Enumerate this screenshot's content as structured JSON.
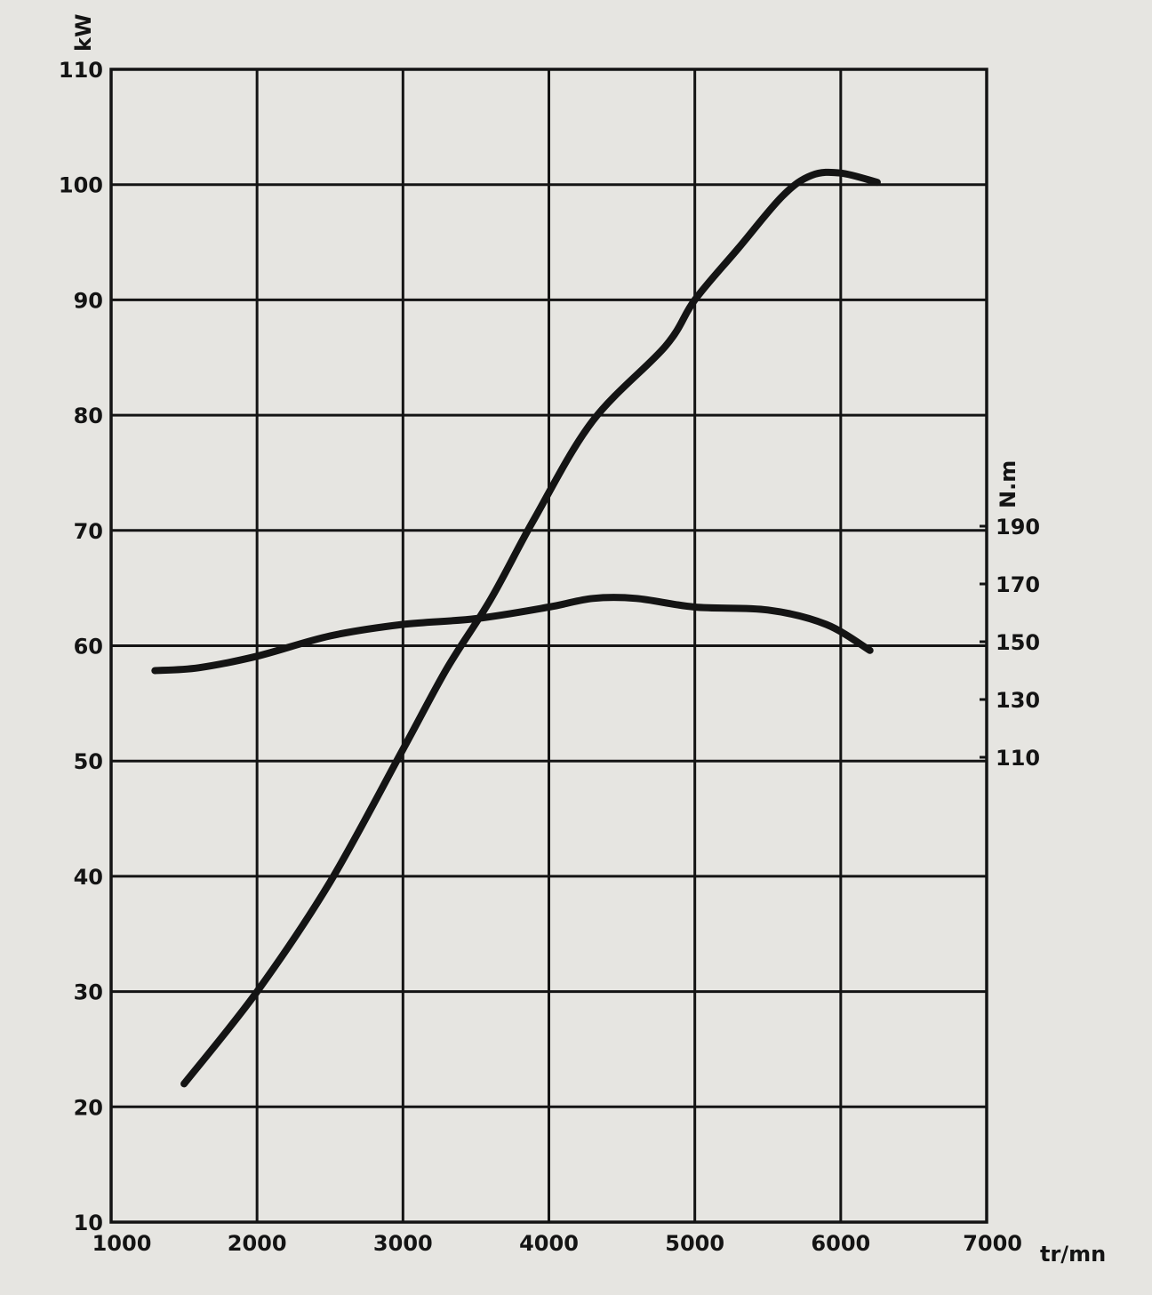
{
  "chart_data": {
    "type": "line",
    "title": "",
    "xlabel": "tr/mn",
    "ylabel": "kW",
    "y2label": "N.m",
    "xlim": [
      1000,
      7000
    ],
    "ylim": [
      10,
      110
    ],
    "y2lim": [
      110,
      190
    ],
    "grid": true,
    "x_ticks": [
      "1000",
      "2000",
      "3000",
      "4000",
      "5000",
      "6000",
      "7000"
    ],
    "y_ticks": [
      "10",
      "20",
      "30",
      "40",
      "50",
      "60",
      "70",
      "80",
      "90",
      "100",
      "110"
    ],
    "y2_ticks": [
      "110",
      "130",
      "150",
      "170",
      "190"
    ],
    "series": [
      {
        "axis": "left",
        "points": [
          [
            1500,
            22
          ],
          [
            2000,
            30
          ],
          [
            2500,
            39.5
          ],
          [
            3000,
            51
          ],
          [
            3300,
            58
          ],
          [
            3600,
            64
          ],
          [
            3900,
            71
          ],
          [
            4300,
            79.5
          ],
          [
            4800,
            86
          ],
          [
            5000,
            90
          ],
          [
            5300,
            94.5
          ],
          [
            5600,
            99
          ],
          [
            5800,
            100.8
          ],
          [
            6000,
            101
          ],
          [
            6250,
            100.2
          ]
        ]
      },
      {
        "axis": "right",
        "points": [
          [
            1300,
            140
          ],
          [
            1600,
            141
          ],
          [
            2000,
            145
          ],
          [
            2500,
            152
          ],
          [
            3000,
            156
          ],
          [
            3500,
            158
          ],
          [
            4000,
            162
          ],
          [
            4300,
            165
          ],
          [
            4600,
            165
          ],
          [
            5000,
            162
          ],
          [
            5500,
            161
          ],
          [
            5900,
            156
          ],
          [
            6200,
            147
          ]
        ]
      }
    ]
  }
}
